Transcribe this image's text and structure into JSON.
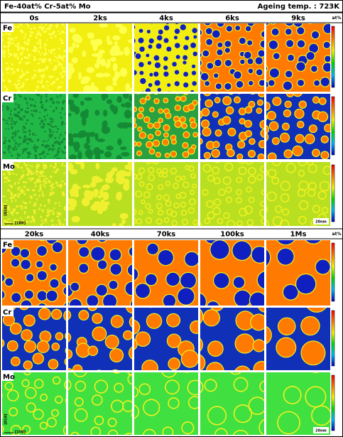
{
  "header": {
    "title": "Fe-40at% Cr-5at% Mo",
    "temperature": "Ageing temp. : 723K"
  },
  "blocks": [
    {
      "times": [
        "0s",
        "2ks",
        "4ks",
        "6ks",
        "9ks"
      ],
      "unit": "at%",
      "rows": [
        "Fe",
        "Cr",
        "Mo"
      ]
    },
    {
      "times": [
        "20ks",
        "40ks",
        "70ks",
        "100ks",
        "1Ms"
      ],
      "unit": "at%",
      "rows": [
        "Fe",
        "Cr",
        "Mo"
      ]
    }
  ],
  "scale_bar": "20nm",
  "axes": [
    "[010]",
    "[100]"
  ]
}
